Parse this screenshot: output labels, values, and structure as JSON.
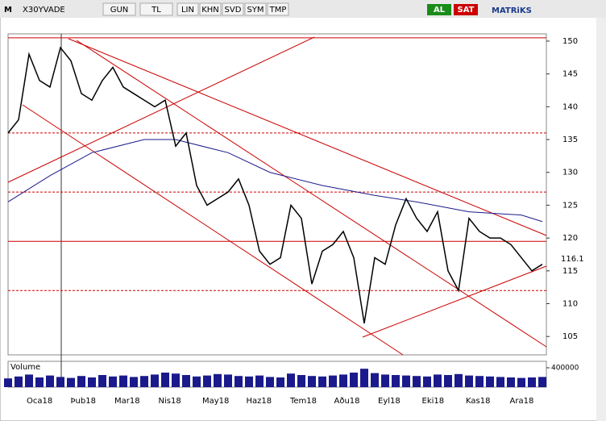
{
  "toolbar": {
    "logo": "M",
    "symbol": "X30YVADE",
    "buttons": [
      "GUN",
      "TL",
      "LIN",
      "KHN",
      "SVD",
      "SYM",
      "TMP"
    ],
    "buy": "AL",
    "sell": "SAT",
    "brand": "MATRiKS"
  },
  "chart_data": {
    "type": "line",
    "months": [
      "Oca18",
      "Þub18",
      "Mar18",
      "Nis18",
      "May18",
      "Haz18",
      "Tem18",
      "Aðu18",
      "Eyl18",
      "Eki18",
      "Kas18",
      "Ara18"
    ],
    "xlim": [
      0,
      51
    ],
    "values": [
      136,
      138,
      148,
      144,
      143,
      149,
      147,
      142,
      141,
      144,
      146,
      143,
      142,
      141,
      140,
      141,
      134,
      136,
      128,
      125,
      126,
      127,
      129,
      125,
      118,
      116,
      117,
      125,
      123,
      113,
      118,
      119,
      121,
      117,
      107,
      117,
      116,
      122,
      126,
      123,
      121,
      124,
      115,
      112,
      123,
      121,
      120,
      120,
      119,
      117,
      115,
      116
    ],
    "color": "#000000",
    "ma": {
      "x": [
        0,
        4,
        8,
        13,
        16,
        21,
        25,
        30,
        35,
        39,
        44,
        49,
        51
      ],
      "values": [
        125.5,
        129.5,
        133,
        135,
        135,
        133,
        130,
        128,
        126.5,
        125.5,
        124,
        123.5,
        122.5
      ],
      "color": "#1a1a8c"
    },
    "levels": {
      "solid": [
        150.5,
        119.5
      ],
      "dashed": [
        136,
        127,
        112
      ],
      "color": "#cc0000"
    },
    "last": {
      "value": 116.1,
      "label": "116.1"
    },
    "ylim": [
      102.2,
      151.1
    ],
    "yticks": [
      105,
      110,
      115,
      120,
      125,
      130,
      135,
      140,
      145,
      150
    ],
    "volume": {
      "label": "Volume",
      "values": [
        180000,
        220000,
        260000,
        200000,
        240000,
        210000,
        190000,
        230000,
        200000,
        250000,
        220000,
        240000,
        210000,
        230000,
        260000,
        300000,
        280000,
        250000,
        220000,
        240000,
        270000,
        260000,
        230000,
        220000,
        240000,
        210000,
        200000,
        280000,
        250000,
        230000,
        220000,
        240000,
        260000,
        300000,
        380000,
        290000,
        260000,
        250000,
        240000,
        230000,
        220000,
        260000,
        250000,
        270000,
        240000,
        230000,
        220000,
        210000,
        200000,
        190000,
        200000,
        210000
      ],
      "ylim": [
        0,
        500000
      ],
      "yticks": [
        400000
      ],
      "color": "#1a1a8c"
    }
  }
}
